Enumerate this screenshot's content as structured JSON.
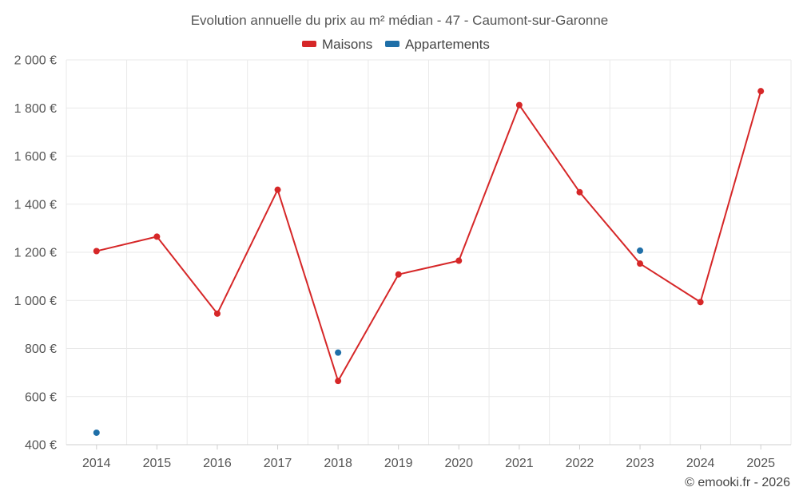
{
  "chart_data": {
    "type": "line",
    "title": "Evolution annuelle du prix au m² médian - 47 - Caumont-sur-Garonne",
    "xlabel": "",
    "ylabel": "",
    "categories": [
      "2014",
      "2015",
      "2016",
      "2017",
      "2018",
      "2019",
      "2020",
      "2021",
      "2022",
      "2023",
      "2024",
      "2025"
    ],
    "ylim": [
      400,
      2000
    ],
    "yticks": [
      400,
      600,
      800,
      1000,
      1200,
      1400,
      1600,
      1800,
      2000
    ],
    "ytick_labels": [
      "400 €",
      "600 €",
      "800 €",
      "1 000 €",
      "1 200 €",
      "1 400 €",
      "1 600 €",
      "1 800 €",
      "2 000 €"
    ],
    "grid": true,
    "legend_position": "top-center",
    "series": [
      {
        "name": "Maisons",
        "color": "#d62728",
        "style": "line+markers",
        "values": [
          1205,
          1265,
          945,
          1460,
          665,
          1108,
          1165,
          1812,
          1450,
          1153,
          993,
          1870
        ]
      },
      {
        "name": "Appartements",
        "color": "#1f6fa8",
        "style": "markers",
        "values": [
          450,
          null,
          null,
          null,
          783,
          null,
          null,
          null,
          null,
          1207,
          null,
          null
        ]
      }
    ]
  },
  "footer": {
    "credit": "© emooki.fr - 2026"
  }
}
